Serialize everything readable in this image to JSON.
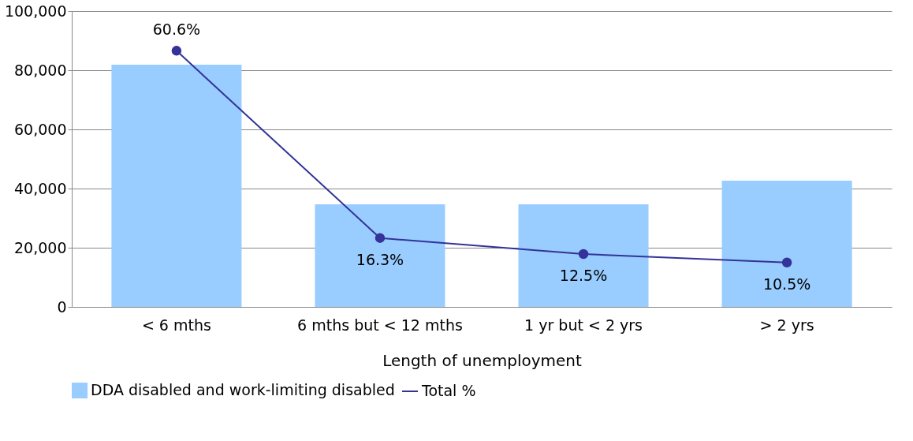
{
  "chart_data": {
    "type": "bar",
    "xlabel": "Length of unemployment",
    "categories": [
      "< 6 mths",
      "6 mths but < 12 mths",
      "1 yr but < 2 yrs",
      "> 2 yrs"
    ],
    "series": [
      {
        "name": "DDA disabled and work-limiting disabled",
        "color": "#99ccff",
        "values": [
          81900,
          34700,
          34700,
          42700
        ]
      },
      {
        "name": "Total %",
        "type": "line",
        "axis": "y2",
        "color": "#333399",
        "values": [
          60.6,
          16.3,
          12.5,
          10.5
        ],
        "value_labels": [
          "60.6%",
          "16.3%",
          "12.5%",
          "10.5%"
        ]
      }
    ],
    "ylim": [
      0,
      100000
    ],
    "yticks": [
      0,
      {
        "value": 20000,
        "label": "20,000"
      },
      {
        "value": 40000,
        "label": "40,000"
      },
      {
        "value": 60000,
        "label": "60,000"
      },
      {
        "value": 80000,
        "label": "80,000"
      },
      {
        "value": 100000,
        "label": "100,000"
      }
    ],
    "y2lim": [
      0,
      70
    ],
    "tick_labels": "y",
    "grid": "y",
    "legend": "bottom",
    "marker": "circle"
  }
}
